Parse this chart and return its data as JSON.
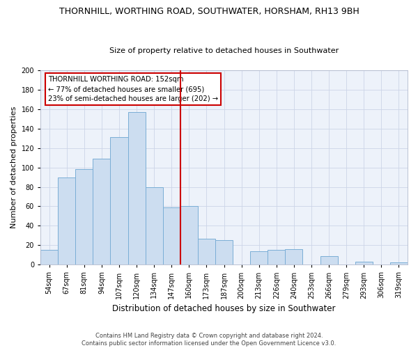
{
  "title": "THORNHILL, WORTHING ROAD, SOUTHWATER, HORSHAM, RH13 9BH",
  "subtitle": "Size of property relative to detached houses in Southwater",
  "xlabel": "Distribution of detached houses by size in Southwater",
  "ylabel": "Number of detached properties",
  "bar_labels": [
    "54sqm",
    "67sqm",
    "81sqm",
    "94sqm",
    "107sqm",
    "120sqm",
    "134sqm",
    "147sqm",
    "160sqm",
    "173sqm",
    "187sqm",
    "200sqm",
    "213sqm",
    "226sqm",
    "240sqm",
    "253sqm",
    "266sqm",
    "279sqm",
    "293sqm",
    "306sqm",
    "319sqm"
  ],
  "bar_values": [
    15,
    90,
    98,
    109,
    131,
    157,
    80,
    59,
    60,
    27,
    25,
    0,
    14,
    15,
    16,
    0,
    9,
    0,
    3,
    0,
    2
  ],
  "bar_color": "#ccddf0",
  "bar_edge_color": "#7aaed6",
  "vline_x_index": 8,
  "annotation_title": "THORNHILL WORTHING ROAD: 152sqm",
  "annotation_line1": "← 77% of detached houses are smaller (695)",
  "annotation_line2": "23% of semi-detached houses are larger (202) →",
  "annotation_box_color": "#ffffff",
  "annotation_box_edge": "#cc0000",
  "vline_color": "#cc0000",
  "footer1": "Contains HM Land Registry data © Crown copyright and database right 2024.",
  "footer2": "Contains public sector information licensed under the Open Government Licence v3.0.",
  "ylim": [
    0,
    200
  ],
  "yticks": [
    0,
    20,
    40,
    60,
    80,
    100,
    120,
    140,
    160,
    180,
    200
  ],
  "grid_color": "#ccd5e8",
  "bg_color": "#edf2fa",
  "title_fontsize": 9,
  "subtitle_fontsize": 8,
  "ylabel_fontsize": 8,
  "xlabel_fontsize": 8.5,
  "tick_fontsize": 7,
  "ann_fontsize": 7.2,
  "footer_fontsize": 6
}
